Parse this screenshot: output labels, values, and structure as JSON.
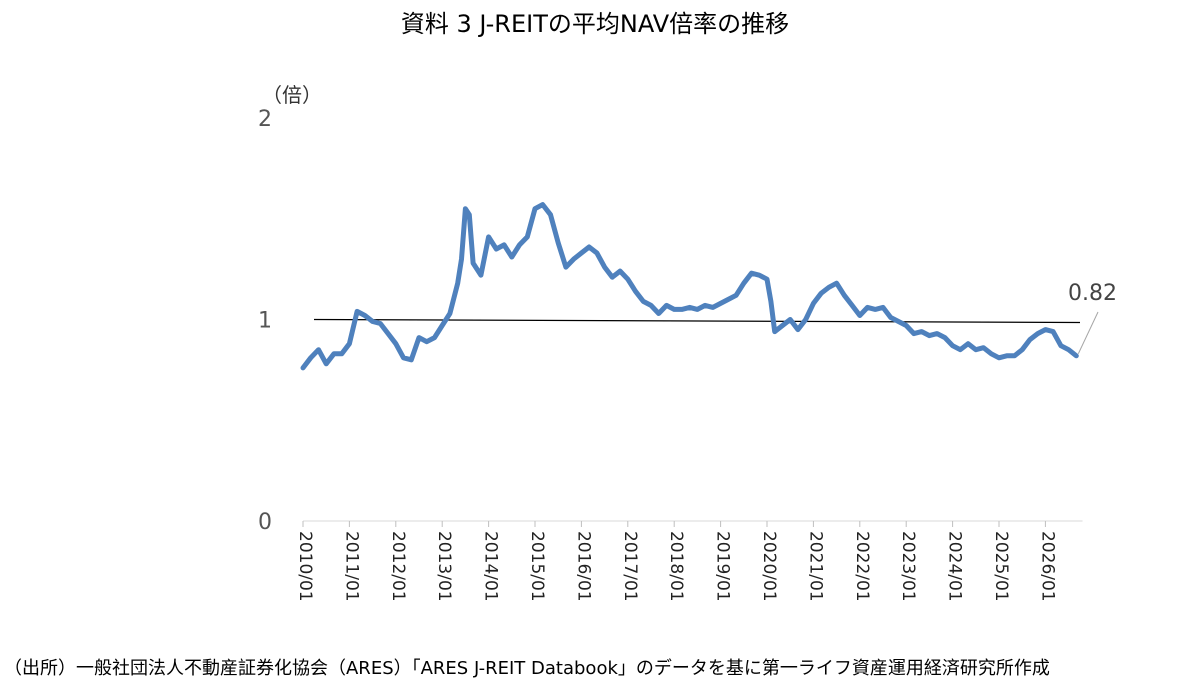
{
  "chart_data": {
    "type": "line",
    "title": "資料 3 J-REITの平均NAV倍率の推移",
    "ylabel": "（倍）",
    "xlabel": "",
    "ylim": [
      0,
      2
    ],
    "yticks": [
      "0",
      "1",
      "2"
    ],
    "xticks": [
      "2010/01",
      "2011/01",
      "2012/01",
      "2013/01",
      "2014/01",
      "2015/01",
      "2016/01",
      "2017/01",
      "2018/01",
      "2019/01",
      "2020/01",
      "2021/01",
      "2022/01",
      "2023/01",
      "2024/01",
      "2025/01",
      "2026/01"
    ],
    "reference_line": {
      "y": 1.0,
      "color": "#000000"
    },
    "annotation": {
      "text": "0.82",
      "x": "2026/09",
      "y": 0.82
    },
    "series": [
      {
        "color": "#4f81bd",
        "points": [
          [
            "2010/01",
            0.76
          ],
          [
            "2010/03",
            0.81
          ],
          [
            "2010/05",
            0.85
          ],
          [
            "2010/07",
            0.78
          ],
          [
            "2010/09",
            0.83
          ],
          [
            "2010/11",
            0.83
          ],
          [
            "2011/01",
            0.88
          ],
          [
            "2011/03",
            1.04
          ],
          [
            "2011/05",
            1.02
          ],
          [
            "2011/07",
            0.99
          ],
          [
            "2011/09",
            0.98
          ],
          [
            "2011/11",
            0.93
          ],
          [
            "2012/01",
            0.88
          ],
          [
            "2012/03",
            0.81
          ],
          [
            "2012/05",
            0.8
          ],
          [
            "2012/07",
            0.91
          ],
          [
            "2012/09",
            0.89
          ],
          [
            "2012/11",
            0.91
          ],
          [
            "2013/01",
            0.97
          ],
          [
            "2013/03",
            1.03
          ],
          [
            "2013/05",
            1.18
          ],
          [
            "2013/06",
            1.3
          ],
          [
            "2013/07",
            1.55
          ],
          [
            "2013/08",
            1.52
          ],
          [
            "2013/09",
            1.28
          ],
          [
            "2013/11",
            1.22
          ],
          [
            "2014/01",
            1.41
          ],
          [
            "2014/03",
            1.35
          ],
          [
            "2014/05",
            1.37
          ],
          [
            "2014/07",
            1.31
          ],
          [
            "2014/09",
            1.37
          ],
          [
            "2014/11",
            1.41
          ],
          [
            "2015/01",
            1.55
          ],
          [
            "2015/03",
            1.57
          ],
          [
            "2015/05",
            1.52
          ],
          [
            "2015/07",
            1.38
          ],
          [
            "2015/09",
            1.26
          ],
          [
            "2015/11",
            1.3
          ],
          [
            "2016/01",
            1.33
          ],
          [
            "2016/03",
            1.36
          ],
          [
            "2016/05",
            1.33
          ],
          [
            "2016/07",
            1.26
          ],
          [
            "2016/09",
            1.21
          ],
          [
            "2016/11",
            1.24
          ],
          [
            "2017/01",
            1.2
          ],
          [
            "2017/03",
            1.14
          ],
          [
            "2017/05",
            1.09
          ],
          [
            "2017/07",
            1.07
          ],
          [
            "2017/09",
            1.03
          ],
          [
            "2017/11",
            1.07
          ],
          [
            "2018/01",
            1.05
          ],
          [
            "2018/03",
            1.05
          ],
          [
            "2018/05",
            1.06
          ],
          [
            "2018/07",
            1.05
          ],
          [
            "2018/09",
            1.07
          ],
          [
            "2018/11",
            1.06
          ],
          [
            "2019/01",
            1.08
          ],
          [
            "2019/03",
            1.1
          ],
          [
            "2019/05",
            1.12
          ],
          [
            "2019/07",
            1.18
          ],
          [
            "2019/09",
            1.23
          ],
          [
            "2019/11",
            1.22
          ],
          [
            "2020/01",
            1.2
          ],
          [
            "2020/02",
            1.09
          ],
          [
            "2020/03",
            0.94
          ],
          [
            "2020/05",
            0.97
          ],
          [
            "2020/07",
            1.0
          ],
          [
            "2020/09",
            0.95
          ],
          [
            "2020/11",
            1.0
          ],
          [
            "2021/01",
            1.08
          ],
          [
            "2021/03",
            1.13
          ],
          [
            "2021/05",
            1.16
          ],
          [
            "2021/07",
            1.18
          ],
          [
            "2021/09",
            1.12
          ],
          [
            "2021/11",
            1.07
          ],
          [
            "2022/01",
            1.02
          ],
          [
            "2022/03",
            1.06
          ],
          [
            "2022/05",
            1.05
          ],
          [
            "2022/07",
            1.06
          ],
          [
            "2022/09",
            1.01
          ],
          [
            "2022/11",
            0.99
          ],
          [
            "2023/01",
            0.97
          ],
          [
            "2023/03",
            0.93
          ],
          [
            "2023/05",
            0.94
          ],
          [
            "2023/07",
            0.92
          ],
          [
            "2023/09",
            0.93
          ],
          [
            "2023/11",
            0.91
          ],
          [
            "2024/01",
            0.87
          ],
          [
            "2024/03",
            0.85
          ],
          [
            "2024/05",
            0.88
          ],
          [
            "2024/07",
            0.85
          ],
          [
            "2024/09",
            0.86
          ],
          [
            "2024/11",
            0.83
          ],
          [
            "2025/01",
            0.81
          ],
          [
            "2025/03",
            0.82
          ],
          [
            "2025/05",
            0.82
          ],
          [
            "2025/07",
            0.85
          ],
          [
            "2025/09",
            0.9
          ],
          [
            "2025/11",
            0.93
          ],
          [
            "2026/01",
            0.95
          ],
          [
            "2026/03",
            0.94
          ],
          [
            "2026/05",
            0.87
          ],
          [
            "2026/07",
            0.85
          ],
          [
            "2026/09",
            0.82
          ]
        ]
      }
    ]
  },
  "source_note": "（出所）一般社団法人不動産証券化協会（ARES）「ARES J-REIT Databook」のデータを基に第一ライフ資産運用経済研究所作成"
}
